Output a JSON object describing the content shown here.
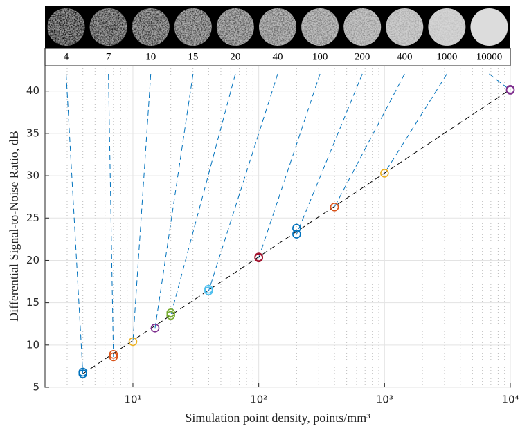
{
  "chart_data": {
    "type": "scatter",
    "x_label": "Simulation point density, points/mm³",
    "y_label": "Differential Signal-to-Noise Ratio, dB",
    "thumbnail_labels": [
      "4",
      "7",
      "10",
      "15",
      "20",
      "40",
      "100",
      "200",
      "400",
      "1000",
      "10000"
    ],
    "x": [
      4,
      4,
      7,
      7,
      10,
      15,
      20,
      20,
      40,
      40,
      100,
      100,
      200,
      200,
      400,
      1000,
      10000,
      10000
    ],
    "values": [
      6.6,
      6.8,
      8.6,
      8.9,
      10.4,
      12.0,
      13.5,
      13.8,
      16.4,
      16.6,
      20.3,
      20.4,
      23.1,
      23.8,
      26.3,
      30.3,
      40.1,
      40.2
    ],
    "colors": [
      "#0072bd",
      "#0072bd",
      "#d95319",
      "#d95319",
      "#edb120",
      "#7e2f8e",
      "#77ac30",
      "#77ac30",
      "#4dbeee",
      "#4dbeee",
      "#a2142f",
      "#a2142f",
      "#0072bd",
      "#0072bd",
      "#d95319",
      "#edb120",
      "#7e2f8e",
      "#7e2f8e"
    ],
    "fit_line": {
      "x": [
        4,
        10000
      ],
      "values": [
        6.6,
        40.2
      ],
      "color": "#000000"
    },
    "connector_color": "#0072bd",
    "x_log": true,
    "xlim": [
      2,
      10000
    ],
    "xticks": [
      {
        "value": 10,
        "label": "10¹"
      },
      {
        "value": 100,
        "label": "10²"
      },
      {
        "value": 1000,
        "label": "10³"
      },
      {
        "value": 10000,
        "label": "10⁴"
      }
    ],
    "ylim": [
      5,
      43
    ],
    "yticks": [
      5,
      10,
      15,
      20,
      25,
      30,
      35,
      40
    ],
    "grid": true
  }
}
